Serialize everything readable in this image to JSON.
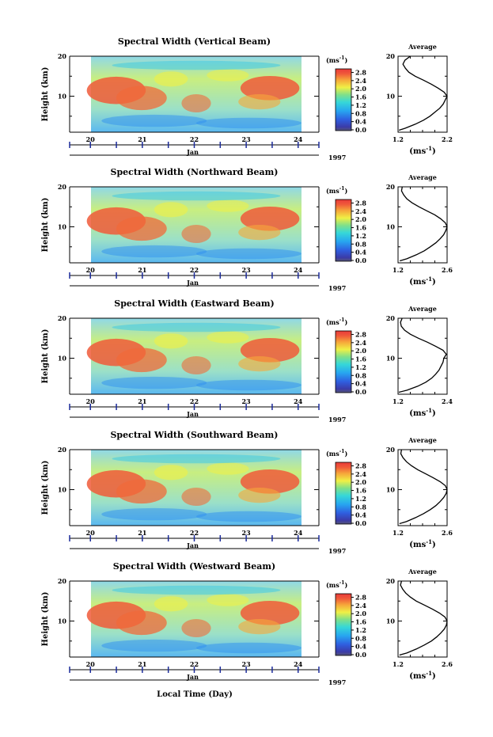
{
  "chart_data": {
    "type": "heatmap",
    "xlabel_bottom": "Local Time (Day)",
    "month_label": "Jan",
    "year_label": "1997",
    "x_ticks": [
      "20",
      "21",
      "22",
      "23",
      "24"
    ],
    "x_range_days": [
      19.6,
      24.4
    ],
    "y_label": "Height (km)",
    "y_range_km": [
      1,
      20
    ],
    "y_ticks": [
      "20",
      "10"
    ],
    "colorbar": {
      "unit_label": "(ms",
      "unit_sup": "-1",
      "unit_close": ")",
      "ticks": [
        "2.8",
        "2.4",
        "2.0",
        "1.6",
        "1.2",
        "0.8",
        "0.4",
        "0.0"
      ],
      "range": [
        0.0,
        2.8
      ]
    },
    "average_title": "Average",
    "average_xlabel": "(ms",
    "average_xlabel_sup": "-1",
    "average_xlabel_close": ")",
    "panels": [
      {
        "title": "Spectral Width (Vertical Beam)",
        "avg_ticks": [
          "1.2",
          "2.2"
        ],
        "avg_xlim": [
          1.2,
          2.2
        ],
        "average_profile": {
          "height_km": [
            1.5,
            2,
            3,
            4,
            5,
            6,
            7,
            8,
            9,
            10,
            11,
            12,
            13,
            14,
            15,
            16,
            17,
            18,
            19,
            20
          ],
          "width": [
            1.22,
            1.35,
            1.55,
            1.72,
            1.85,
            1.95,
            2.05,
            2.12,
            2.16,
            2.2,
            2.14,
            2.02,
            1.88,
            1.72,
            1.55,
            1.42,
            1.35,
            1.3,
            1.34,
            1.45
          ]
        }
      },
      {
        "title": "Spectral Width (Northward Beam)",
        "avg_ticks": [
          "1.2",
          "2.6"
        ],
        "avg_xlim": [
          1.2,
          2.6
        ],
        "average_profile": {
          "height_km": [
            1.5,
            2,
            3,
            4,
            5,
            6,
            7,
            8,
            9,
            10,
            11,
            12,
            13,
            14,
            15,
            16,
            17,
            18,
            19,
            20
          ],
          "width": [
            1.25,
            1.45,
            1.72,
            1.95,
            2.12,
            2.28,
            2.4,
            2.5,
            2.56,
            2.6,
            2.55,
            2.42,
            2.25,
            2.02,
            1.8,
            1.6,
            1.45,
            1.36,
            1.3,
            1.32
          ]
        }
      },
      {
        "title": "Spectral Width (Eastward Beam)",
        "avg_ticks": [
          "1.2",
          "2.4"
        ],
        "avg_xlim": [
          1.2,
          2.4
        ],
        "average_profile": {
          "height_km": [
            1.5,
            2,
            3,
            4,
            5,
            6,
            7,
            8,
            9,
            10,
            11,
            12,
            13,
            14,
            15,
            16,
            17,
            18,
            19,
            20
          ],
          "width": [
            1.22,
            1.42,
            1.68,
            1.88,
            2.02,
            2.12,
            2.2,
            2.25,
            2.3,
            2.32,
            2.38,
            2.3,
            2.12,
            1.92,
            1.7,
            1.5,
            1.36,
            1.28,
            1.26,
            1.3
          ]
        }
      },
      {
        "title": "Spectral Width (Southward Beam)",
        "avg_ticks": [
          "1.2",
          "2.6"
        ],
        "avg_xlim": [
          1.2,
          2.6
        ],
        "average_profile": {
          "height_km": [
            1.5,
            2,
            3,
            4,
            5,
            6,
            7,
            8,
            9,
            10,
            11,
            12,
            13,
            14,
            15,
            16,
            17,
            18,
            19,
            20
          ],
          "width": [
            1.24,
            1.44,
            1.7,
            1.93,
            2.12,
            2.28,
            2.4,
            2.5,
            2.57,
            2.6,
            2.55,
            2.4,
            2.2,
            1.98,
            1.76,
            1.58,
            1.44,
            1.34,
            1.28,
            1.3
          ]
        }
      },
      {
        "title": "Spectral Width (Westward Beam)",
        "avg_ticks": [
          "1.2",
          "2.6"
        ],
        "avg_xlim": [
          1.2,
          2.6
        ],
        "average_profile": {
          "height_km": [
            1.5,
            2,
            3,
            4,
            5,
            6,
            7,
            8,
            9,
            10,
            11,
            12,
            13,
            14,
            15,
            16,
            17,
            18,
            19,
            20
          ],
          "width": [
            1.24,
            1.45,
            1.72,
            1.95,
            2.15,
            2.3,
            2.42,
            2.52,
            2.58,
            2.6,
            2.54,
            2.38,
            2.18,
            1.95,
            1.72,
            1.55,
            1.42,
            1.33,
            1.27,
            1.3
          ]
        }
      }
    ]
  }
}
